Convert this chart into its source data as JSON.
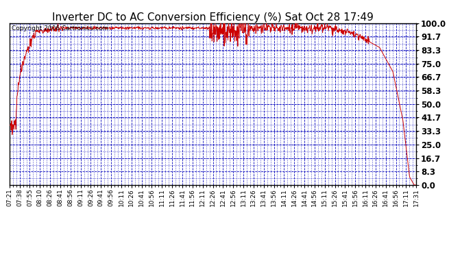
{
  "title": "Inverter DC to AC Conversion Efficiency (%) Sat Oct 28 17:49",
  "copyright_text": "Copyright 2006 Cartronics.com",
  "y_tick_labels": [
    "0.0",
    "8.3",
    "16.7",
    "25.0",
    "33.3",
    "41.7",
    "50.0",
    "58.3",
    "66.7",
    "75.0",
    "83.3",
    "91.7",
    "100.0"
  ],
  "y_tick_values": [
    0.0,
    8.3,
    16.7,
    25.0,
    33.3,
    41.7,
    50.0,
    58.3,
    66.7,
    75.0,
    83.3,
    91.7,
    100.0
  ],
  "ylim": [
    0.0,
    100.0
  ],
  "x_tick_labels": [
    "07:21",
    "07:38",
    "07:55",
    "08:10",
    "08:26",
    "08:41",
    "08:56",
    "09:11",
    "09:26",
    "09:41",
    "09:56",
    "10:11",
    "10:26",
    "10:41",
    "10:56",
    "11:11",
    "11:26",
    "11:41",
    "11:56",
    "12:11",
    "12:26",
    "12:41",
    "12:56",
    "13:11",
    "13:26",
    "13:41",
    "13:56",
    "14:11",
    "14:26",
    "14:41",
    "14:56",
    "15:11",
    "15:26",
    "15:41",
    "15:56",
    "16:11",
    "16:26",
    "16:41",
    "16:56",
    "17:11",
    "17:31"
  ],
  "line_color": "#cc0000",
  "background_color": "#ffffff",
  "plot_bg_color": "#ffffff",
  "grid_color": "#0000bb",
  "title_fontsize": 11,
  "copyright_fontsize": 6.5,
  "tick_fontsize": 6.5,
  "ytick_fontsize": 8.5
}
